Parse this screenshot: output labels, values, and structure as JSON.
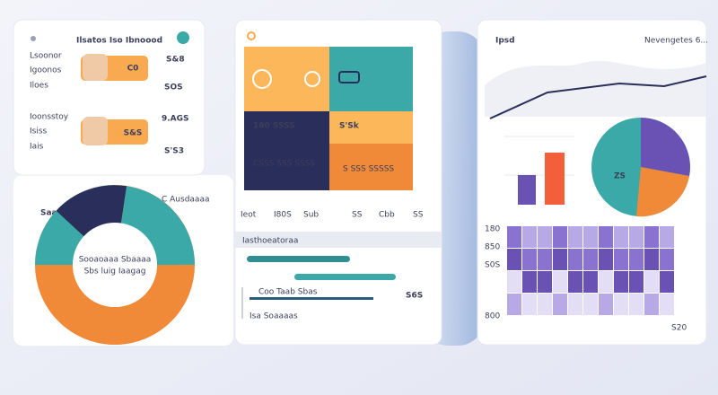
{
  "summary_card": {
    "title": "Ilsatos Iso Ibnoood",
    "rows": [
      {
        "labels": [
          "Lsoonor",
          "Igoonos",
          "Iloes"
        ],
        "tag": "C0",
        "value": "S&8",
        "value2": "SOS"
      },
      {
        "labels": [
          "Ioonsstoy",
          "Isiss",
          "Iais"
        ],
        "tag": "S&S",
        "value": "9.AGS",
        "value2": "S'S3"
      }
    ]
  },
  "donut_card": {
    "title": "Saaaa Tocaa",
    "side_label": "C Ausdaaaa",
    "center": [
      "Sooaoaaa Sbaaaa",
      "Sbs luig Iaagag"
    ]
  },
  "tiles_card": {
    "tiles": [
      "180 SSSS",
      "S'Sk",
      "CSSS SSS SSSS",
      "S SSS SSSSS"
    ],
    "stats": [
      "Ieot",
      "I80S",
      "Sub",
      "SS",
      "Cbb",
      "SS"
    ],
    "list": {
      "title": "Iasthoeatoraa",
      "item": "Coo Taab Sbas",
      "value": "S6S",
      "footer": "Isa Soaaaas"
    }
  },
  "analytics_card": {
    "title": "Ipsd",
    "subtitle": "Nevengetes 6...",
    "pie_label": "ZS",
    "axis_labels": [
      "180",
      "850",
      "S0S",
      "800"
    ],
    "footer": "S20"
  }
}
